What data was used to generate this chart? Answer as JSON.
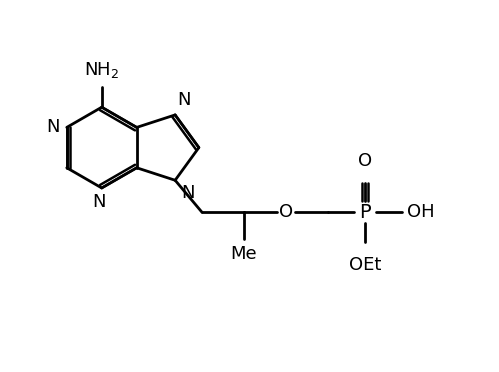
{
  "bg_color": "#ffffff",
  "line_color": "#000000",
  "line_width": 2.0,
  "font_size": 13,
  "fig_width": 4.99,
  "fig_height": 3.72,
  "dpi": 100,
  "xlim": [
    0,
    10
  ],
  "ylim": [
    0,
    7.44
  ]
}
